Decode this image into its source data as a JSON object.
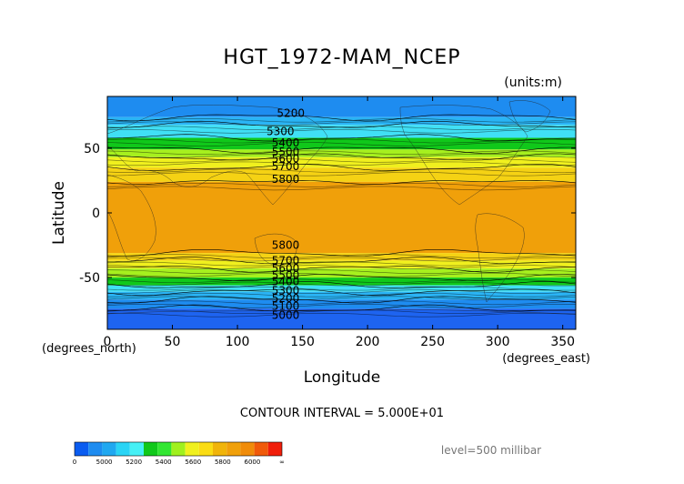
{
  "chart_data": {
    "type": "heatmap",
    "title": "HGT_1972-MAM_NCEP",
    "units_label": "(units:m)",
    "xlabel": "Longitude",
    "ylabel": "Latitude",
    "x_unit_label": "(degrees_east)",
    "y_unit_label": "(degrees_north)",
    "xlim": [
      0,
      360
    ],
    "ylim": [
      -90,
      90
    ],
    "x_ticks": [
      0,
      50,
      100,
      150,
      200,
      250,
      300,
      350
    ],
    "y_ticks": [
      50,
      0,
      -50
    ],
    "contour_interval_text": "CONTOUR INTERVAL = 5.000E+01",
    "level_text": "level=500 millibar",
    "contour_labels": [
      {
        "text": "5200",
        "lon": 141,
        "lat": 77
      },
      {
        "text": "5300",
        "lon": 133,
        "lat": 63
      },
      {
        "text": "5400",
        "lon": 137,
        "lat": 54
      },
      {
        "text": "5500",
        "lon": 137,
        "lat": 47
      },
      {
        "text": "5600",
        "lon": 137,
        "lat": 42
      },
      {
        "text": "5700",
        "lon": 137,
        "lat": 36
      },
      {
        "text": "5800",
        "lon": 137,
        "lat": 26
      },
      {
        "text": "5800",
        "lon": 137,
        "lat": -25
      },
      {
        "text": "5700",
        "lon": 137,
        "lat": -37
      },
      {
        "text": "5600",
        "lon": 137,
        "lat": -43
      },
      {
        "text": "5500",
        "lon": 137,
        "lat": -48
      },
      {
        "text": "5400",
        "lon": 137,
        "lat": -53
      },
      {
        "text": "5300",
        "lon": 137,
        "lat": -60
      },
      {
        "text": "5200",
        "lon": 137,
        "lat": -66
      },
      {
        "text": "5100",
        "lon": 137,
        "lat": -72
      },
      {
        "text": "5000",
        "lon": 137,
        "lat": -79
      }
    ],
    "zonal_bands": [
      {
        "from_lat": 90,
        "to_lat": 74,
        "value": 5150
      },
      {
        "from_lat": 74,
        "to_lat": 68,
        "value": 5250
      },
      {
        "from_lat": 68,
        "to_lat": 58,
        "value": 5350
      },
      {
        "from_lat": 58,
        "to_lat": 49,
        "value": 5450
      },
      {
        "from_lat": 49,
        "to_lat": 43,
        "value": 5550
      },
      {
        "from_lat": 43,
        "to_lat": 35,
        "value": 5650
      },
      {
        "from_lat": 35,
        "to_lat": 24,
        "value": 5750
      },
      {
        "from_lat": 24,
        "to_lat": -31,
        "value": 5850
      },
      {
        "from_lat": -31,
        "to_lat": -37,
        "value": 5750
      },
      {
        "from_lat": -37,
        "to_lat": -43,
        "value": 5650
      },
      {
        "from_lat": -43,
        "to_lat": -50,
        "value": 5550
      },
      {
        "from_lat": -50,
        "to_lat": -56,
        "value": 5450
      },
      {
        "from_lat": -56,
        "to_lat": -61,
        "value": 5350
      },
      {
        "from_lat": -61,
        "to_lat": -67,
        "value": 5250
      },
      {
        "from_lat": -67,
        "to_lat": -74,
        "value": 5150
      },
      {
        "from_lat": -74,
        "to_lat": -90,
        "value": 5050
      }
    ],
    "colorbar": {
      "labels": [
        "0",
        "5000",
        "5200",
        "5400",
        "5600",
        "5800",
        "6000",
        "∞"
      ],
      "colors": [
        "#0a5cf0",
        "#1e8cf0",
        "#20a8f0",
        "#2ad4f5",
        "#46f0f5",
        "#10c81a",
        "#32e632",
        "#a0f01e",
        "#f0f01e",
        "#fadc14",
        "#f0b40a",
        "#f0a00a",
        "#f08c0a",
        "#f05a0a",
        "#f01e0a"
      ]
    }
  }
}
